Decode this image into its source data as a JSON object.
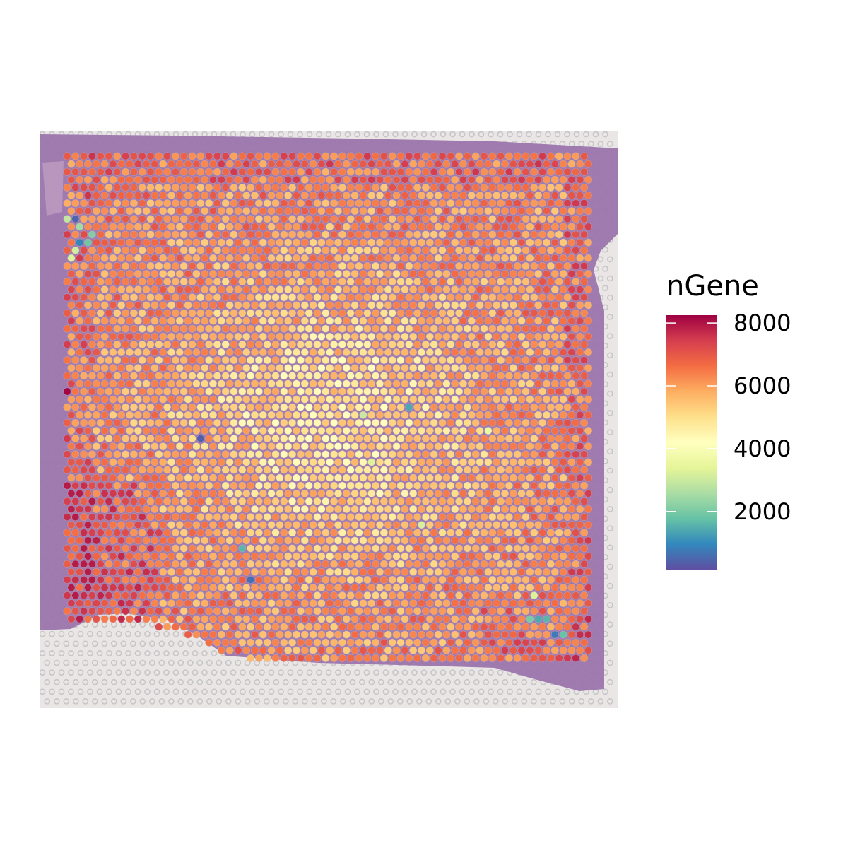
{
  "chart_data": {
    "type": "scatter",
    "title": "",
    "xlabel": "",
    "ylabel": "",
    "legend": {
      "title": "nGene",
      "placement": "right",
      "ticks": [
        {
          "value": 2000,
          "label": "2000"
        },
        {
          "value": 4000,
          "label": "4000"
        },
        {
          "value": 6000,
          "label": "6000"
        },
        {
          "value": 8000,
          "label": "8000"
        }
      ],
      "range": [
        150,
        8250
      ]
    },
    "palette": [
      "#5E4FA2",
      "#3288BD",
      "#66C2A5",
      "#ABDDA4",
      "#E6F598",
      "#FFFFBF",
      "#FEE08B",
      "#FDAE61",
      "#F46D43",
      "#D53E4F",
      "#9E0142"
    ],
    "grid": false,
    "background": "tissue-histology-image",
    "spot_grid": {
      "columns": 63,
      "rows": 65
    },
    "value_summary": {
      "min": 150,
      "max": 8250,
      "typical_range": [
        4500,
        7200
      ]
    },
    "notable_spots": [
      {
        "col": 0,
        "row": 30,
        "value": 8200
      },
      {
        "col": 1,
        "row": 8,
        "value": 450
      },
      {
        "col": 1,
        "row": 11,
        "value": 900
      },
      {
        "col": 2,
        "row": 11,
        "value": 1900
      },
      {
        "col": 3,
        "row": 10,
        "value": 2100
      },
      {
        "col": 1,
        "row": 9,
        "value": 2500
      },
      {
        "col": 0,
        "row": 8,
        "value": 2900
      },
      {
        "col": 1,
        "row": 12,
        "value": 3100
      },
      {
        "col": 0,
        "row": 13,
        "value": 3300
      },
      {
        "col": 16,
        "row": 36,
        "value": 350
      },
      {
        "col": 22,
        "row": 54,
        "value": 600
      },
      {
        "col": 21,
        "row": 50,
        "value": 1600
      },
      {
        "col": 41,
        "row": 32,
        "value": 1400
      },
      {
        "col": 35,
        "row": 33,
        "value": 3000
      },
      {
        "col": 36,
        "row": 39,
        "value": 3300
      },
      {
        "col": 58,
        "row": 61,
        "value": 800
      },
      {
        "col": 56,
        "row": 59,
        "value": 1400
      },
      {
        "col": 57,
        "row": 59,
        "value": 1600
      },
      {
        "col": 55,
        "row": 59,
        "value": 2000
      },
      {
        "col": 56,
        "row": 56,
        "value": 3300
      },
      {
        "col": 59,
        "row": 61,
        "value": 1800
      },
      {
        "col": 42,
        "row": 47,
        "value": 3200
      },
      {
        "col": 50,
        "row": 35,
        "value": 3600
      }
    ]
  }
}
